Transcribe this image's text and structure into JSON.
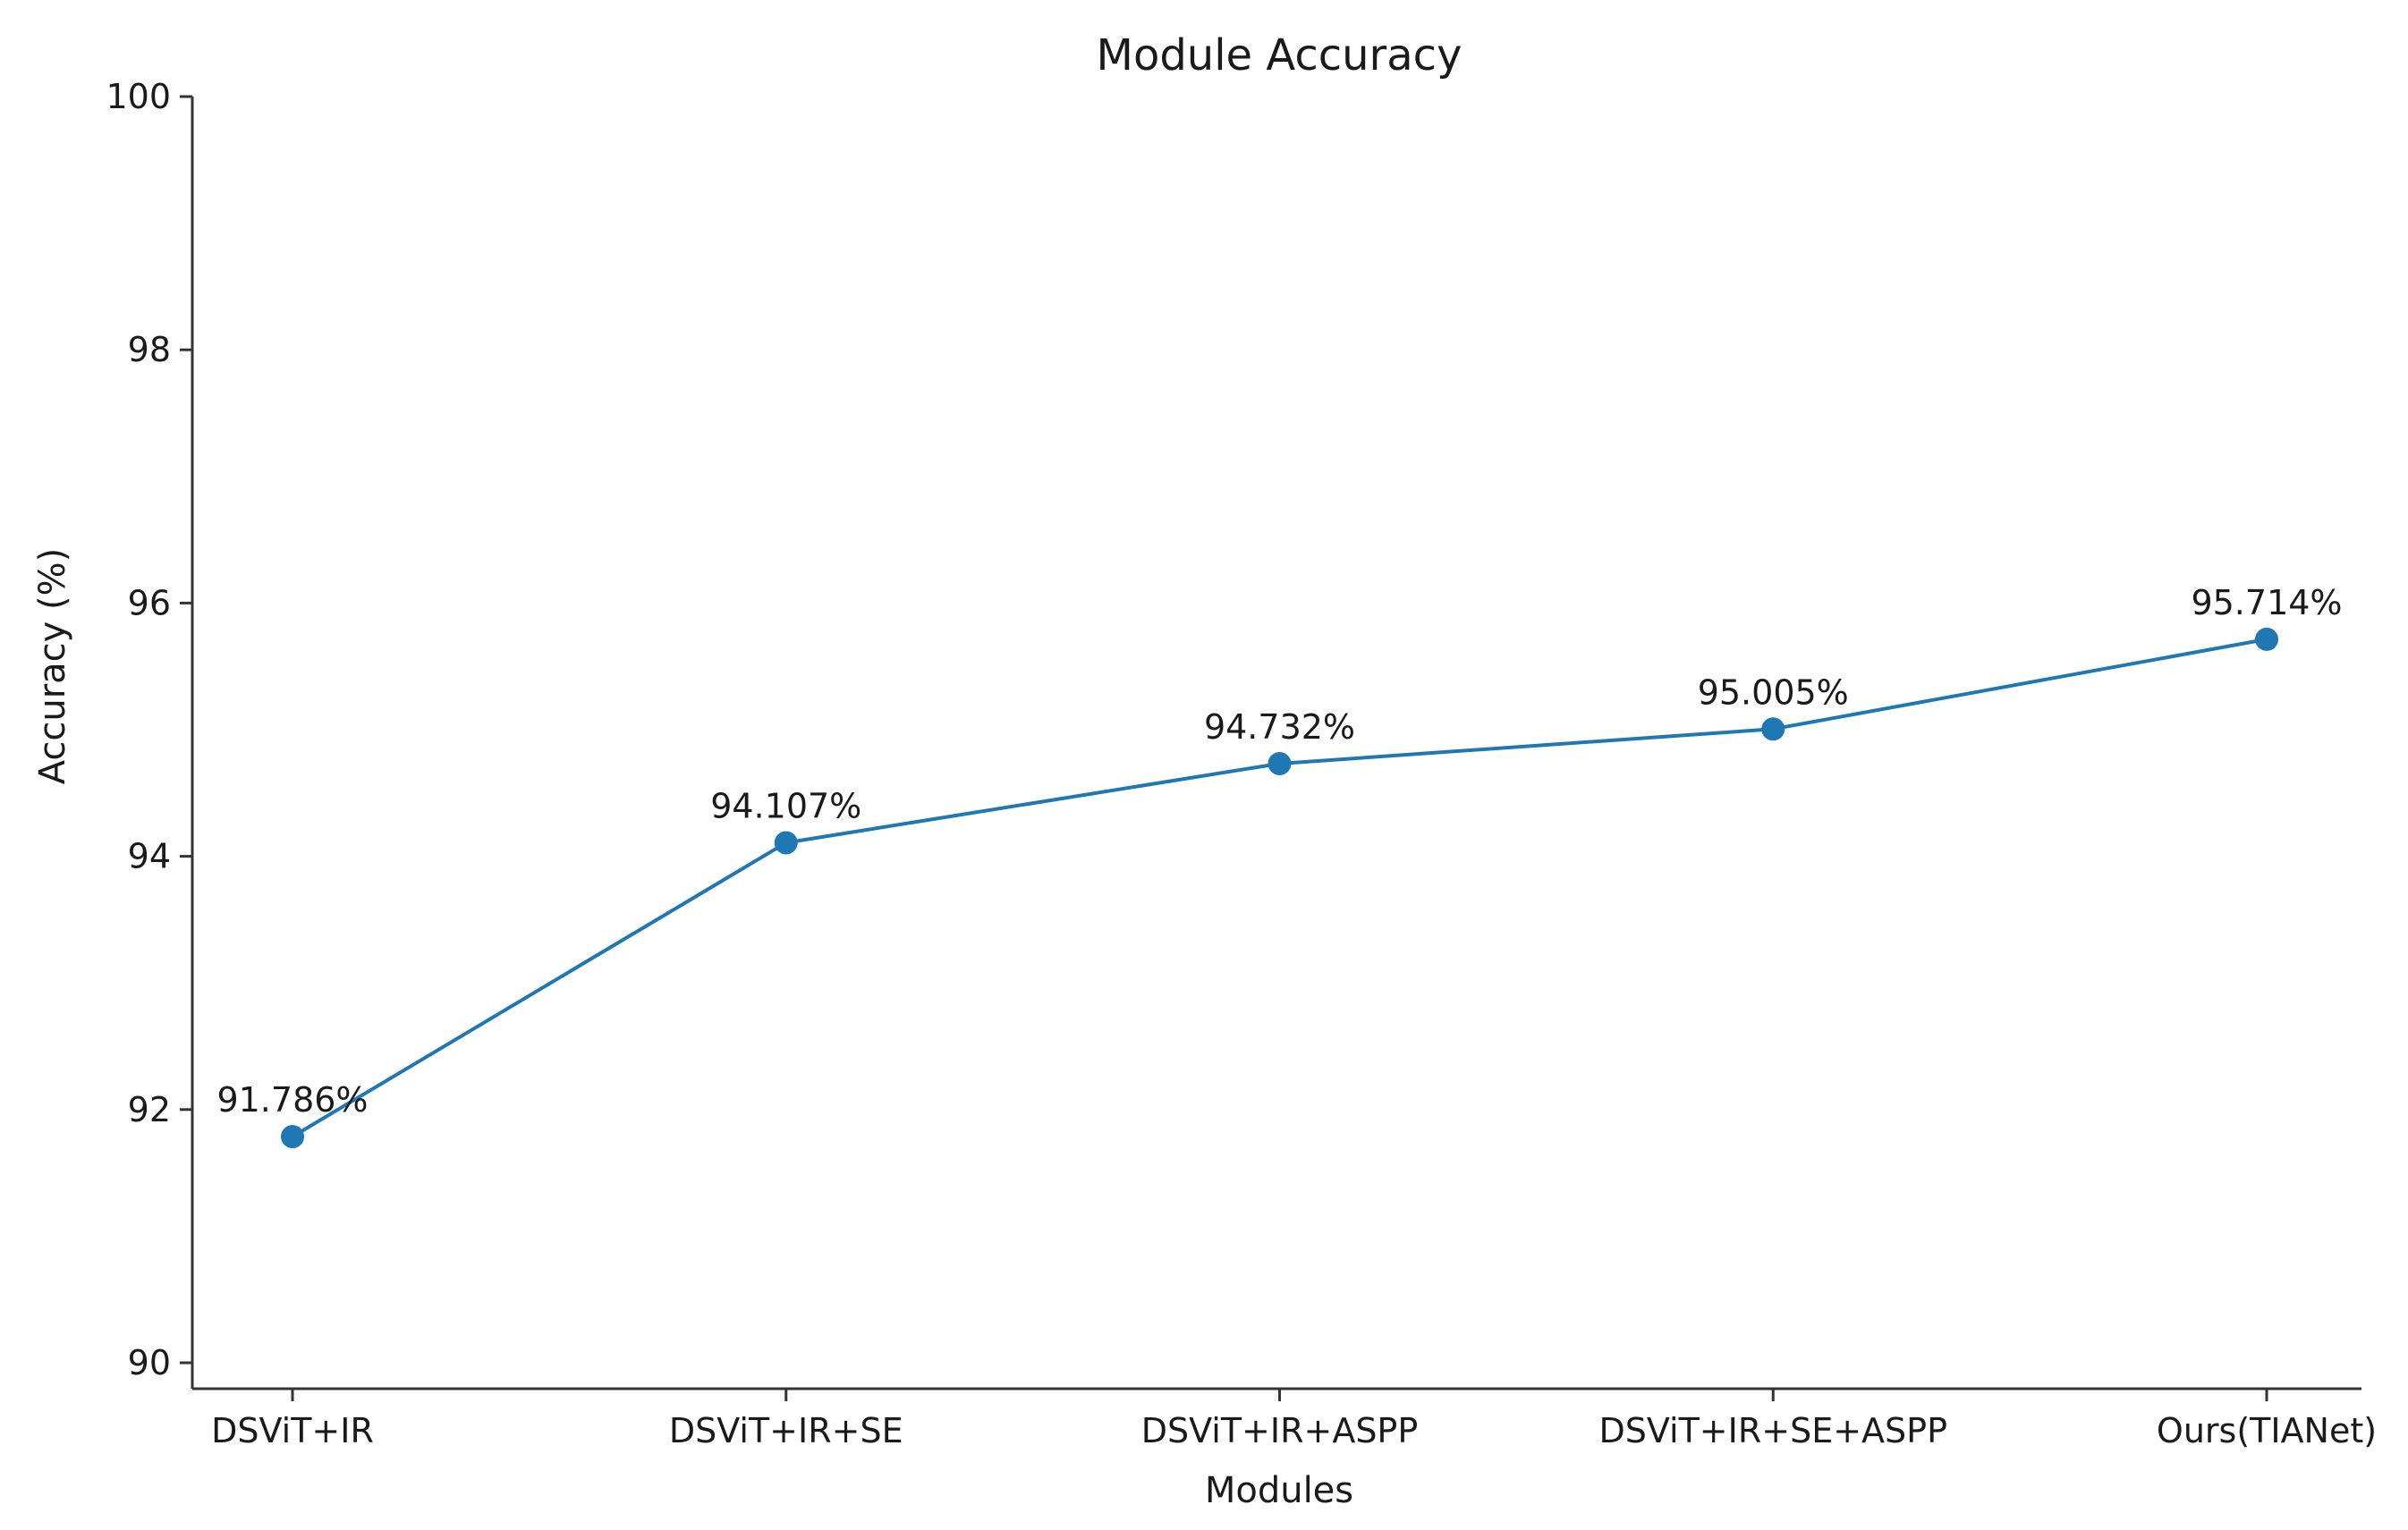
{
  "chart_data": {
    "type": "line",
    "title": "Module Accuracy",
    "xlabel": "Modules",
    "ylabel": "Accuracy (%)",
    "categories": [
      "DSViT+IR",
      "DSViT+IR+SE",
      "DSViT+IR+ASPP",
      "DSViT+IR+SE+ASPP",
      "Ours(TIANet)"
    ],
    "series": [
      {
        "values": [
          91.786,
          94.107,
          94.732,
          95.005,
          95.714
        ],
        "labels": [
          "91.786%",
          "94.107%",
          "94.732%",
          "95.005%",
          "95.714%"
        ],
        "color": "#1f77b4",
        "marker": "circle"
      }
    ],
    "ylim": [
      90,
      100
    ],
    "yticks": [
      90,
      92,
      94,
      96,
      98,
      100
    ],
    "grid": false,
    "legend": "none"
  }
}
